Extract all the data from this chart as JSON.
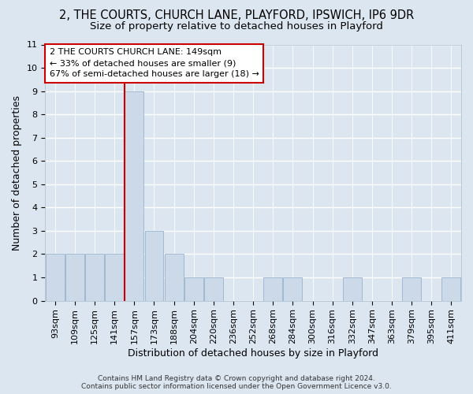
{
  "title": "2, THE COURTS, CHURCH LANE, PLAYFORD, IPSWICH, IP6 9DR",
  "subtitle": "Size of property relative to detached houses in Playford",
  "xlabel": "Distribution of detached houses by size in Playford",
  "ylabel": "Number of detached properties",
  "footer_line1": "Contains HM Land Registry data © Crown copyright and database right 2024.",
  "footer_line2": "Contains public sector information licensed under the Open Government Licence v3.0.",
  "annotation_line1": "2 THE COURTS CHURCH LANE: 149sqm",
  "annotation_line2": "← 33% of detached houses are smaller (9)",
  "annotation_line3": "67% of semi-detached houses are larger (18) →",
  "bar_labels": [
    "93sqm",
    "109sqm",
    "125sqm",
    "141sqm",
    "157sqm",
    "173sqm",
    "188sqm",
    "204sqm",
    "220sqm",
    "236sqm",
    "252sqm",
    "268sqm",
    "284sqm",
    "300sqm",
    "316sqm",
    "332sqm",
    "347sqm",
    "363sqm",
    "379sqm",
    "395sqm",
    "411sqm"
  ],
  "bar_values": [
    2,
    2,
    2,
    2,
    9,
    3,
    2,
    1,
    1,
    0,
    0,
    1,
    1,
    0,
    0,
    1,
    0,
    0,
    1,
    0,
    1
  ],
  "bar_color": "#ccd9e8",
  "bar_edge_color": "#99b3cc",
  "reference_line_color": "#cc0000",
  "reference_line_x": 3.5,
  "ylim_min": 0,
  "ylim_max": 11,
  "yticks": [
    0,
    1,
    2,
    3,
    4,
    5,
    6,
    7,
    8,
    9,
    10,
    11
  ],
  "background_color": "#dce6f0",
  "grid_color": "#ffffff",
  "title_fontsize": 10.5,
  "subtitle_fontsize": 9.5,
  "ylabel_fontsize": 9,
  "xlabel_fontsize": 9,
  "tick_fontsize": 8,
  "annotation_fontsize": 8,
  "footer_fontsize": 6.5
}
